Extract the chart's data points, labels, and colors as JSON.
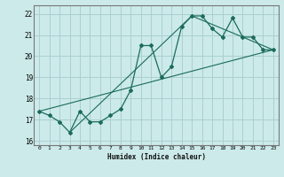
{
  "title": "",
  "xlabel": "Humidex (Indice chaleur)",
  "ylabel": "",
  "bg_color": "#cceaea",
  "grid_color": "#aacfcf",
  "line_color": "#1a6b5a",
  "xlim": [
    -0.5,
    23.5
  ],
  "ylim": [
    15.8,
    22.4
  ],
  "xticks": [
    0,
    1,
    2,
    3,
    4,
    5,
    6,
    7,
    8,
    9,
    10,
    11,
    12,
    13,
    14,
    15,
    16,
    17,
    18,
    19,
    20,
    21,
    22,
    23
  ],
  "yticks": [
    16,
    17,
    18,
    19,
    20,
    21,
    22
  ],
  "data_points": [
    [
      0,
      17.4
    ],
    [
      1,
      17.2
    ],
    [
      2,
      16.9
    ],
    [
      3,
      16.4
    ],
    [
      4,
      17.4
    ],
    [
      5,
      16.9
    ],
    [
      6,
      16.9
    ],
    [
      7,
      17.2
    ],
    [
      8,
      17.5
    ],
    [
      9,
      18.4
    ],
    [
      10,
      20.5
    ],
    [
      11,
      20.5
    ],
    [
      12,
      19.0
    ],
    [
      13,
      19.5
    ],
    [
      14,
      21.4
    ],
    [
      15,
      21.9
    ],
    [
      16,
      21.9
    ],
    [
      17,
      21.3
    ],
    [
      18,
      20.9
    ],
    [
      19,
      21.8
    ],
    [
      20,
      20.9
    ],
    [
      21,
      20.9
    ],
    [
      22,
      20.3
    ],
    [
      23,
      20.3
    ]
  ],
  "line_lower": [
    [
      0,
      17.4
    ],
    [
      23,
      20.3
    ]
  ],
  "line_upper": [
    [
      3,
      16.4
    ],
    [
      15,
      21.9
    ],
    [
      23,
      20.3
    ]
  ],
  "line_diag": [
    [
      0,
      17.4
    ],
    [
      23,
      20.3
    ]
  ]
}
